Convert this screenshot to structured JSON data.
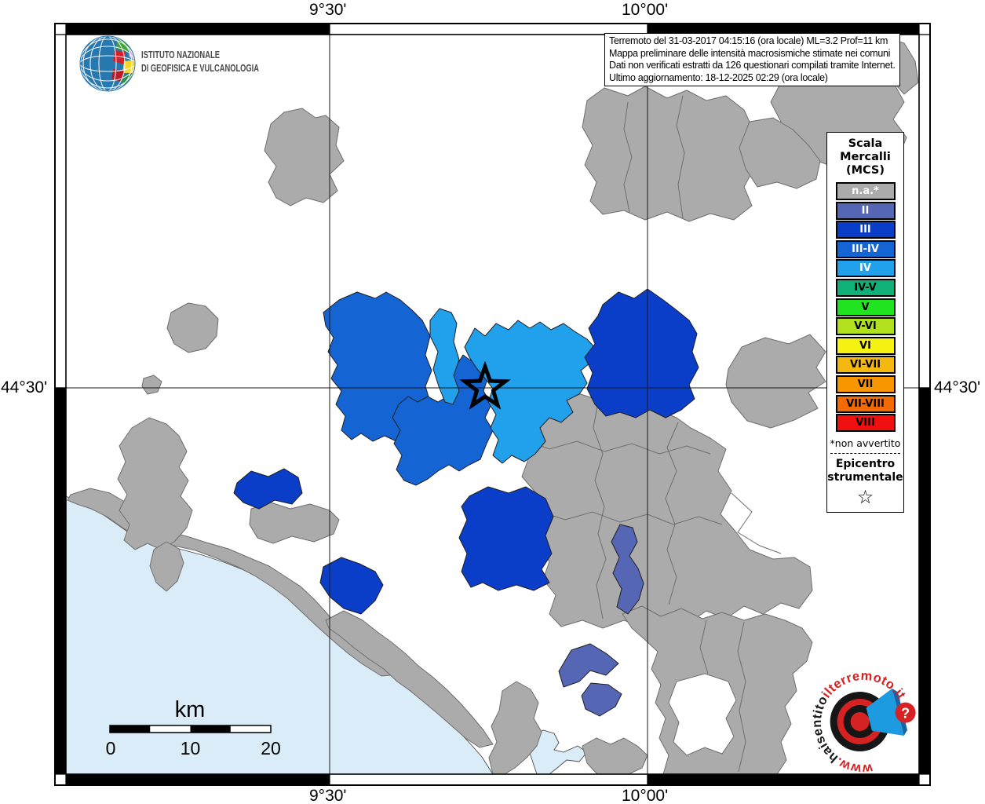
{
  "axis": {
    "top_left": "9°30'",
    "top_right": "10°00'",
    "bottom_left": "9°30'",
    "bottom_right": "10°00'",
    "left": "44°30'",
    "right": "44°30'"
  },
  "branding": {
    "institute_line1": "ISTITUTO NAZIONALE",
    "institute_line2": "DI GEOFISICA E VULCANOLOGIA",
    "logo_icon": "ingv-globe"
  },
  "info_box": {
    "lines": [
      "Terremoto del 31-03-2017 04:15:16 (ora locale) ML=3.2 Prof=11 km",
      "Mappa preliminare delle intensità macrosismiche stimate nei comuni",
      "Dati non verificati estratti da 126 questionari compilati tramite Internet.",
      "Ultimo aggiornamento: 18-12-2025 02:29 (ora locale)"
    ]
  },
  "legend": {
    "title_line1": "Scala",
    "title_line2": "Mercalli",
    "title_line3": "(MCS)",
    "entries": [
      {
        "key": "na",
        "label": "n.a.*",
        "color": "#ABABAB",
        "text_color": "#FFFFFF"
      },
      {
        "key": "ii",
        "label": "II",
        "color": "#5566B4",
        "text_color": "#FFFFFF"
      },
      {
        "key": "iii",
        "label": "III",
        "color": "#0A3EC8",
        "text_color": "#FFFFFF"
      },
      {
        "key": "iii_iv",
        "label": "III-IV",
        "color": "#1464D4",
        "text_color": "#FFFFFF"
      },
      {
        "key": "iv",
        "label": "IV",
        "color": "#21A0EC",
        "text_color": "#FFFFFF"
      },
      {
        "key": "iv_v",
        "label": "IV-V",
        "color": "#10B078",
        "text_color": "#000000"
      },
      {
        "key": "v",
        "label": "V",
        "color": "#20E420",
        "text_color": "#000000"
      },
      {
        "key": "v_vi",
        "label": "V-VI",
        "color": "#B0E01E",
        "text_color": "#000000"
      },
      {
        "key": "vi",
        "label": "VI",
        "color": "#F6F212",
        "text_color": "#000000"
      },
      {
        "key": "vi_vii",
        "label": "VI-VII",
        "color": "#F4B80E",
        "text_color": "#000000"
      },
      {
        "key": "vii",
        "label": "VII",
        "color": "#F89600",
        "text_color": "#000000"
      },
      {
        "key": "vii_viii",
        "label": "VII-VIII",
        "color": "#F26A00",
        "text_color": "#000000"
      },
      {
        "key": "viii",
        "label": "VIII",
        "color": "#F01010",
        "text_color": "#000000"
      }
    ],
    "footnote": "*non avvertito",
    "epicenter_label_line1": "Epicentro",
    "epicenter_label_line2": "strumentale",
    "epicenter_symbol": "☆"
  },
  "scale_bar": {
    "unit": "km",
    "tick_labels": [
      "0",
      "10",
      "20"
    ]
  },
  "watermark": {
    "url_prefix": "www.",
    "name_black": "haisentito",
    "name_red": "ilterremoto.it",
    "badge": "?",
    "logo_icon": "bullseye-megaphone"
  },
  "colors": {
    "sea": "#DAECF8",
    "land": "#FFFFFF",
    "grid_line": "#1A1A1A",
    "gray_border": "#6E6E6E",
    "colored_border": "#1F1F1F"
  }
}
